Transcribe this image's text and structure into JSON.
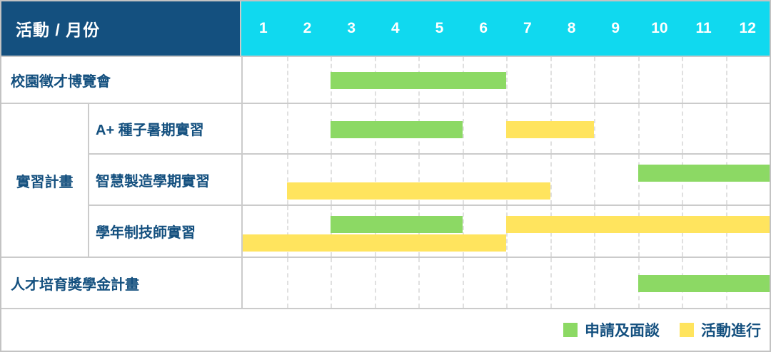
{
  "header": {
    "corner_label": "活動 / 月份"
  },
  "chart_data": {
    "type": "bar",
    "subtype": "gantt",
    "title": "活動 / 月份",
    "x_axis": {
      "unit": "月份",
      "ticks": [
        "1",
        "2",
        "3",
        "4",
        "5",
        "6",
        "7",
        "8",
        "9",
        "10",
        "11",
        "12"
      ]
    },
    "palette": {
      "apply": "#8CD964",
      "active": "#FFE45E"
    },
    "group_label": "實習計畫",
    "rows": [
      {
        "id": "campus-job-fair",
        "label": "校園徵才博覽會",
        "group": null,
        "bars": [
          {
            "type": "apply",
            "start": 3,
            "end": 6,
            "lane": "single"
          }
        ]
      },
      {
        "id": "aplus-seed-summer-internship",
        "label": "A+ 種子暑期實習",
        "group": "實習計畫",
        "bars": [
          {
            "type": "apply",
            "start": 3,
            "end": 5,
            "lane": "single"
          },
          {
            "type": "active",
            "start": 7,
            "end": 8,
            "lane": "single"
          }
        ]
      },
      {
        "id": "smart-manufacturing-semester-internship",
        "label": "智慧製造學期實習",
        "group": "實習計畫",
        "bars": [
          {
            "type": "apply",
            "start": 10,
            "end": 12,
            "lane": "top"
          },
          {
            "type": "active",
            "start": 2,
            "end": 7,
            "lane": "bottom"
          }
        ]
      },
      {
        "id": "academic-year-technician-internship",
        "label": "學年制技師實習",
        "group": "實習計畫",
        "bars": [
          {
            "type": "apply",
            "start": 3,
            "end": 5,
            "lane": "top"
          },
          {
            "type": "active",
            "start": 7,
            "end": 12,
            "lane": "top"
          },
          {
            "type": "active",
            "start": 1,
            "end": 6,
            "lane": "bottom"
          }
        ]
      },
      {
        "id": "talent-scholarship-program",
        "label": "人才培育獎學金計畫",
        "group": null,
        "bars": [
          {
            "type": "apply",
            "start": 10,
            "end": 12,
            "lane": "single"
          }
        ]
      }
    ],
    "legend": [
      {
        "key": "apply",
        "label": "申請及面談",
        "color": "#8CD964"
      },
      {
        "key": "active",
        "label": "活動進行",
        "color": "#FFE45E"
      }
    ],
    "colors": {
      "corner_bg": "#14507F",
      "month_header_bg": "#10D9EF",
      "label_text": "#14507F",
      "grid_border": "#cbcbcb"
    }
  }
}
